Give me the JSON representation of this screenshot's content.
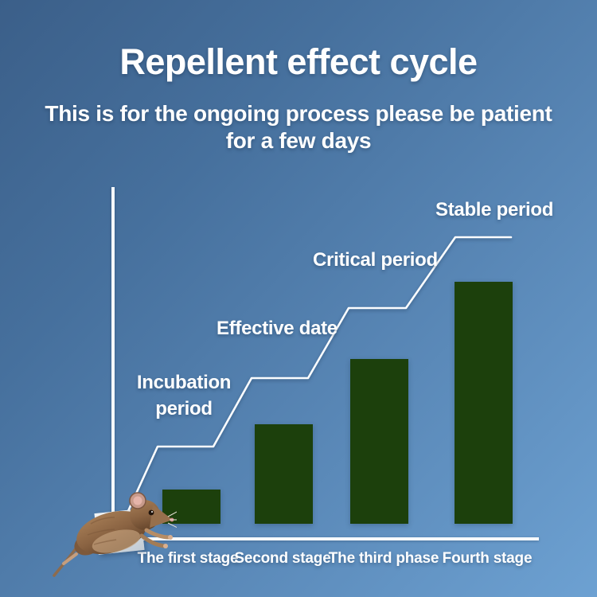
{
  "header": {
    "title": "Repellent effect cycle",
    "subtitle_line1": "This is for the ongoing process please be patient",
    "subtitle_line2": "for a few days"
  },
  "chart": {
    "annotations": {
      "incubation_line1": "Incubation",
      "incubation_line2": "period",
      "effective": "Effective date",
      "critical": "Critical period",
      "stable": "Stable period"
    },
    "x_labels": [
      "The first stage",
      "Second stage",
      "The third phase",
      "Fourth stage"
    ]
  },
  "chart_data": {
    "type": "bar",
    "title": "Repellent effect cycle",
    "subtitle": "This is for the ongoing process please be patient for a few days",
    "categories": [
      "The first stage",
      "Second stage",
      "The third phase",
      "Fourth stage"
    ],
    "values": [
      14,
      41,
      68,
      100
    ],
    "values_note": "relative bar heights in % of tallest bar; chart shows no numeric axis",
    "stage_annotations": [
      "Incubation period",
      "Effective date",
      "Critical period",
      "Stable period"
    ],
    "step_line_levels_pct": [
      30,
      53,
      76,
      100
    ],
    "xlabel": "",
    "ylabel": "",
    "grid": false,
    "legend": false,
    "bar_color": "#1c400c"
  },
  "colors": {
    "background_top_left": "#3b5f89",
    "background_bottom_right": "#6da1d2",
    "bar": "#1c400c",
    "line_and_text": "#ffffff"
  },
  "decor": {
    "mouse_image": "jumping-mouse-photo"
  }
}
